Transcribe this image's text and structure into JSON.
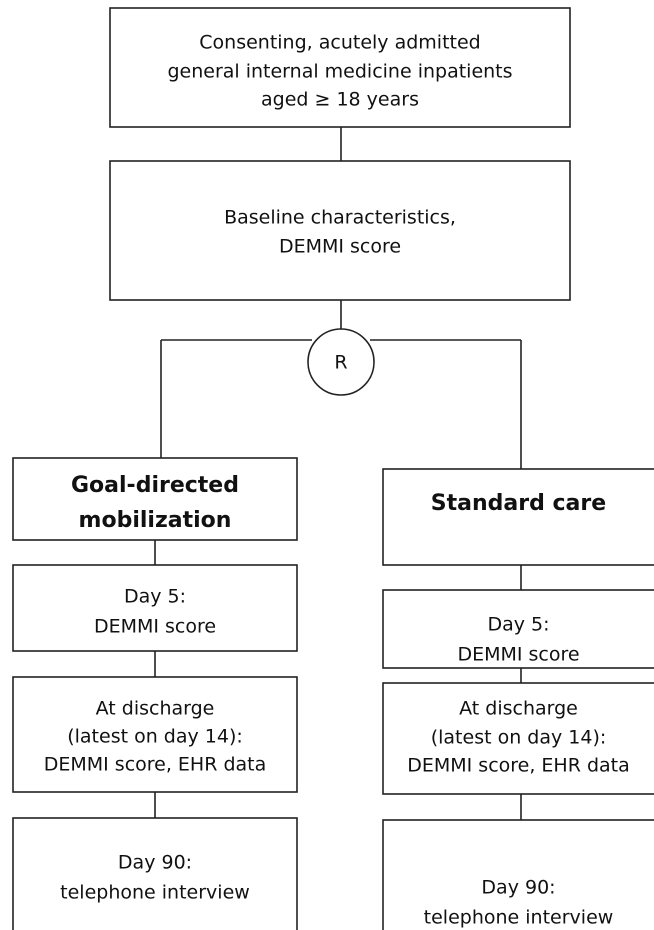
{
  "nodes": [
    {
      "lines": [
        "Consenting, acutely admitted",
        "general internal medicine inpatients",
        "aged ≥ 18 years"
      ]
    },
    {
      "lines": [
        "Baseline characteristics,",
        "DEMMI score"
      ]
    },
    {
      "lines": [
        "R"
      ]
    },
    {
      "lines": [
        "Goal-directed",
        "mobilization"
      ]
    },
    {
      "lines": [
        "Day 5:",
        "DEMMI score"
      ]
    },
    {
      "lines": [
        "At discharge",
        "(latest on day 14):",
        "DEMMI score, EHR data"
      ]
    },
    {
      "lines": [
        "Day 90:",
        "telephone interview"
      ]
    },
    {
      "lines": [
        "Standard care"
      ]
    },
    {
      "lines": [
        "Day 5:",
        "DEMMI score"
      ]
    },
    {
      "lines": [
        "At discharge",
        "(latest on day 14):",
        "DEMMI score, EHR data"
      ]
    },
    {
      "lines": [
        "Day 90:",
        "telephone interview"
      ]
    }
  ]
}
